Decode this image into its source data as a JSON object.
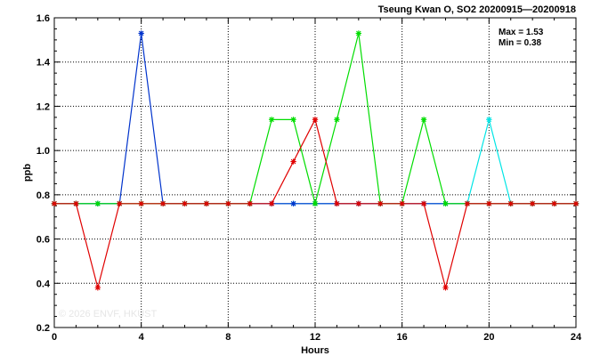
{
  "chart_data": {
    "type": "line",
    "title": "Tseung Kwan O, SO2 20200915—20200918",
    "xlabel": "Hours",
    "ylabel": "ppb",
    "xlim": [
      0,
      24
    ],
    "ylim": [
      0.2,
      1.6
    ],
    "x_ticks": [
      0,
      4,
      8,
      12,
      16,
      20,
      24
    ],
    "y_ticks": [
      0.2,
      0.4,
      0.6,
      0.8,
      1.0,
      1.2,
      1.4,
      1.6
    ],
    "y_tick_labels": [
      "0.2",
      "0.4",
      "0.6",
      "0.8",
      "1.0",
      "1.2",
      "1.4",
      "1.6"
    ],
    "grid": true,
    "stats": {
      "max_text": "Max = 1.53",
      "min_text": "Min = 0.38"
    },
    "watermark": "© 2026  ENVF, HKUST",
    "x": [
      0,
      1,
      2,
      3,
      4,
      5,
      6,
      7,
      8,
      9,
      10,
      11,
      12,
      13,
      14,
      15,
      16,
      17,
      18,
      19,
      20,
      21,
      22,
      23,
      24
    ],
    "series": [
      {
        "color": "#00e5e5",
        "values": [
          0.76,
          0.76,
          0.76,
          0.76,
          0.76,
          0.76,
          0.76,
          0.76,
          0.76,
          0.76,
          0.76,
          0.76,
          0.76,
          0.76,
          0.76,
          0.76,
          0.76,
          0.76,
          0.76,
          0.76,
          1.14,
          0.76,
          0.76,
          0.76,
          0.76
        ]
      },
      {
        "color": "#0033cc",
        "values": [
          0.76,
          0.76,
          0.76,
          0.76,
          1.53,
          0.76,
          0.76,
          0.76,
          0.76,
          0.76,
          0.76,
          0.76,
          0.76,
          0.76,
          0.76,
          0.76,
          0.76,
          0.76,
          0.76,
          0.76,
          0.76,
          0.76,
          0.76,
          0.76,
          0.76
        ]
      },
      {
        "color": "#00dd00",
        "values": [
          0.76,
          0.76,
          0.76,
          0.76,
          0.76,
          0.76,
          0.76,
          0.76,
          0.76,
          0.76,
          1.14,
          1.14,
          0.76,
          1.14,
          1.53,
          0.76,
          0.76,
          1.14,
          0.76,
          0.76,
          0.76,
          0.76,
          0.76,
          0.76,
          0.76
        ]
      },
      {
        "color": "#e00000",
        "values": [
          0.76,
          0.76,
          0.38,
          0.76,
          0.76,
          0.76,
          0.76,
          0.76,
          0.76,
          0.76,
          0.76,
          0.95,
          1.14,
          0.76,
          0.76,
          0.76,
          0.76,
          0.76,
          0.38,
          0.76,
          0.76,
          0.76,
          0.76,
          0.76,
          0.76
        ]
      }
    ]
  }
}
